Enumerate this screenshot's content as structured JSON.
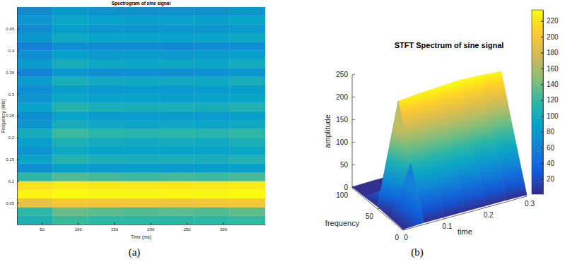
{
  "chart_data": [
    {
      "type": "heatmap",
      "title": "Spectrogram of sine signal",
      "xlabel": "Time (ms)",
      "ylabel": "Frequency (kHz)",
      "caption": "(a)",
      "x_edges": [
        16,
        65,
        114,
        163,
        212,
        260,
        309,
        358
      ],
      "y_edges": [
        0,
        0.02,
        0.04,
        0.06,
        0.08,
        0.1,
        0.12,
        0.14,
        0.16,
        0.18,
        0.2,
        0.22,
        0.24,
        0.26,
        0.28,
        0.3,
        0.32,
        0.34,
        0.36,
        0.38,
        0.4,
        0.42,
        0.44,
        0.46,
        0.48,
        0.5
      ],
      "z": [
        [
          0.45,
          0.52,
          0.5,
          0.5,
          0.49,
          0.5,
          0.51
        ],
        [
          0.5,
          0.58,
          0.56,
          0.55,
          0.56,
          0.55,
          0.57
        ],
        [
          0.82,
          0.86,
          0.85,
          0.85,
          0.84,
          0.85,
          0.86
        ],
        [
          0.98,
          1.0,
          0.99,
          0.99,
          0.99,
          0.99,
          1.0
        ],
        [
          0.93,
          0.96,
          0.95,
          0.95,
          0.95,
          0.95,
          0.96
        ],
        [
          0.5,
          0.55,
          0.53,
          0.52,
          0.53,
          0.52,
          0.54
        ],
        [
          0.3,
          0.36,
          0.34,
          0.35,
          0.34,
          0.35,
          0.36
        ],
        [
          0.38,
          0.47,
          0.44,
          0.43,
          0.44,
          0.43,
          0.46
        ],
        [
          0.32,
          0.4,
          0.37,
          0.38,
          0.37,
          0.38,
          0.39
        ],
        [
          0.36,
          0.45,
          0.42,
          0.41,
          0.42,
          0.41,
          0.44
        ],
        [
          0.42,
          0.52,
          0.49,
          0.48,
          0.49,
          0.48,
          0.5
        ],
        [
          0.33,
          0.43,
          0.4,
          0.39,
          0.4,
          0.39,
          0.41
        ],
        [
          0.3,
          0.37,
          0.35,
          0.34,
          0.35,
          0.34,
          0.36
        ],
        [
          0.37,
          0.47,
          0.44,
          0.43,
          0.44,
          0.43,
          0.46
        ],
        [
          0.32,
          0.39,
          0.37,
          0.37,
          0.36,
          0.37,
          0.38
        ],
        [
          0.3,
          0.36,
          0.34,
          0.35,
          0.34,
          0.35,
          0.36
        ],
        [
          0.35,
          0.44,
          0.41,
          0.4,
          0.41,
          0.4,
          0.43
        ],
        [
          0.26,
          0.32,
          0.3,
          0.31,
          0.3,
          0.31,
          0.32
        ],
        [
          0.34,
          0.43,
          0.4,
          0.39,
          0.4,
          0.39,
          0.42
        ],
        [
          0.3,
          0.36,
          0.34,
          0.35,
          0.34,
          0.35,
          0.36
        ],
        [
          0.25,
          0.3,
          0.29,
          0.29,
          0.28,
          0.29,
          0.3
        ],
        [
          0.33,
          0.41,
          0.38,
          0.38,
          0.37,
          0.38,
          0.4
        ],
        [
          0.29,
          0.35,
          0.33,
          0.33,
          0.33,
          0.33,
          0.34
        ],
        [
          0.32,
          0.39,
          0.37,
          0.36,
          0.37,
          0.36,
          0.38
        ],
        [
          0.28,
          0.33,
          0.31,
          0.31,
          0.31,
          0.31,
          0.32
        ]
      ],
      "zlim": [
        0,
        1
      ],
      "xlim": [
        16,
        358
      ],
      "ylim": [
        0,
        0.5
      ],
      "xticks": [
        50,
        100,
        150,
        200,
        250,
        300
      ],
      "yticks": [
        0.05,
        0.1,
        0.15,
        0.2,
        0.25,
        0.3,
        0.35,
        0.4,
        0.45
      ]
    },
    {
      "type": "surface3d",
      "title": "STFT Spectrum of sine signal",
      "xlabel": "time",
      "ylabel": "frequency",
      "zlabel": "amplitude",
      "caption": "(b)",
      "x": [
        0,
        0.05,
        0.1,
        0.15,
        0.2,
        0.25,
        0.3
      ],
      "y": [
        0,
        25,
        50,
        75,
        100
      ],
      "z": [
        [
          2,
          4,
          4,
          4,
          4,
          4,
          3
        ],
        [
          3,
          112,
          114,
          116,
          117,
          116,
          114
        ],
        [
          5,
          226,
          230,
          233,
          235,
          233,
          229
        ],
        [
          3,
          8,
          9,
          9,
          9,
          9,
          8
        ],
        [
          2,
          3,
          3,
          3,
          3,
          3,
          3
        ]
      ],
      "xlim": [
        0,
        0.3
      ],
      "ylim": [
        0,
        100
      ],
      "zlim": [
        0,
        250
      ],
      "xticks": [
        0,
        0.1,
        0.2,
        0.3
      ],
      "yticks": [
        0,
        50,
        100
      ],
      "zticks": [
        0,
        50,
        100,
        150,
        200,
        250
      ],
      "colorbar": {
        "range": [
          1,
          234
        ],
        "ticks": [
          20,
          40,
          60,
          80,
          100,
          120,
          140,
          160,
          180,
          200,
          220
        ]
      }
    }
  ]
}
